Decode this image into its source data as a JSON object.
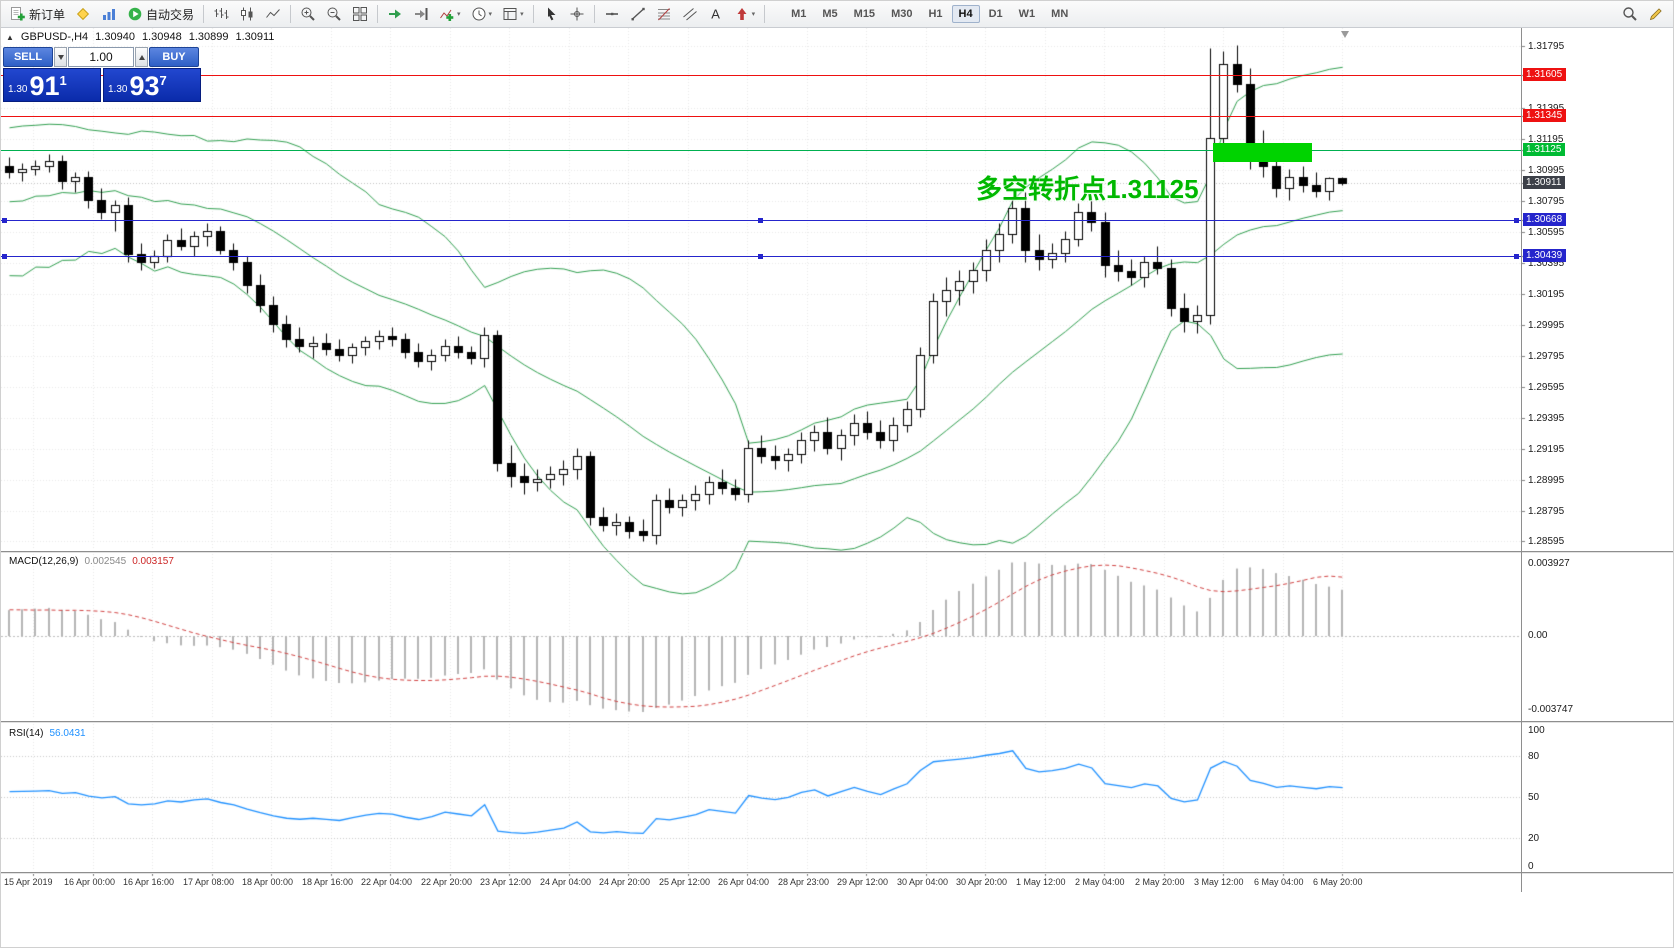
{
  "toolbar": {
    "items": [
      {
        "name": "new-order",
        "icon": "new-order-icon",
        "label": "新订单"
      },
      {
        "name": "metaquotes",
        "icon": "diamond-icon"
      },
      {
        "name": "charts-profile",
        "icon": "profile-icon"
      },
      {
        "name": "autotrading",
        "icon": "autotrading-icon",
        "label": "自动交易"
      },
      {
        "sep": true
      },
      {
        "name": "bar-chart",
        "icon": "bar-chart-icon"
      },
      {
        "name": "candlestick-chart",
        "icon": "candlestick-icon"
      },
      {
        "name": "line-chart",
        "icon": "line-chart-icon"
      },
      {
        "sep": true
      },
      {
        "name": "zoom-in",
        "icon": "zoom-in-icon"
      },
      {
        "name": "zoom-out",
        "icon": "zoom-out-icon"
      },
      {
        "name": "tile-windows",
        "icon": "tile-windows-icon"
      },
      {
        "sep": true
      },
      {
        "name": "auto-scroll",
        "icon": "auto-scroll-icon"
      },
      {
        "name": "chart-shift",
        "icon": "chart-shift-icon"
      },
      {
        "name": "indicators",
        "icon": "indicators-icon",
        "dropdown": true
      },
      {
        "name": "periods",
        "icon": "clock-icon",
        "dropdown": true
      },
      {
        "name": "templates",
        "icon": "template-icon",
        "dropdown": true
      },
      {
        "sep": true
      },
      {
        "name": "cursor",
        "icon": "cursor-icon"
      },
      {
        "name": "crosshair",
        "icon": "crosshair-icon"
      },
      {
        "sep": true
      },
      {
        "name": "horizontal-line",
        "icon": "hline-icon"
      },
      {
        "name": "trendline",
        "icon": "trendline-icon"
      },
      {
        "name": "fibonacci",
        "icon": "fibonacci-icon"
      },
      {
        "name": "equidistant-channel",
        "icon": "channel-icon"
      },
      {
        "name": "text",
        "icon": "text-icon"
      },
      {
        "name": "arrows",
        "icon": "arrow-icon",
        "dropdown": true
      },
      {
        "sep": true
      }
    ],
    "timeframes": [
      "M1",
      "M5",
      "M15",
      "M30",
      "H1",
      "H4",
      "D1",
      "W1",
      "MN"
    ],
    "active_timeframe": "H4",
    "right_items": [
      {
        "name": "search",
        "icon": "search-icon"
      },
      {
        "name": "quick-edit",
        "icon": "pencil-icon"
      }
    ]
  },
  "chart_header": {
    "collapse_icon": "▲",
    "symbol_period": "GBPUSD-,H4",
    "open": "1.30940",
    "high": "1.30948",
    "low": "1.30899",
    "close": "1.30911"
  },
  "one_click": {
    "sell_label": "SELL",
    "buy_label": "BUY",
    "volume": "1.00",
    "sell_price": {
      "small": "1.30",
      "big": "91",
      "sup": "1"
    },
    "buy_price": {
      "small": "1.30",
      "big": "93",
      "sup": "7"
    }
  },
  "annotation": {
    "text": "多空转折点1.31125",
    "color": "#00b800"
  },
  "levels": [
    {
      "price": 1.31605,
      "color": "#ee1111"
    },
    {
      "price": 1.31345,
      "color": "#ee1111"
    },
    {
      "price": 1.31125,
      "color": "#00b050"
    },
    {
      "price": 1.30668,
      "color": "#2525cc",
      "selected": true
    },
    {
      "price": 1.30439,
      "color": "#2525cc",
      "selected": true
    }
  ],
  "highlight_rect": {
    "from_candle": 91.5,
    "to_candle": 99.0,
    "price_top": 1.3117,
    "price_bottom": 1.31045,
    "color": "#00d300"
  },
  "price_axis": {
    "labels": [
      "1.31795",
      "1.31395",
      "1.31195",
      "1.30995",
      "1.30795",
      "1.30595",
      "1.30395",
      "1.30195",
      "1.29995",
      "1.29795",
      "1.29595",
      "1.29395",
      "1.29195",
      "1.28995",
      "1.28795",
      "1.28595"
    ],
    "tags": [
      {
        "text": "1.31605",
        "price": 1.31605,
        "color": "#ee1111"
      },
      {
        "text": "1.31345",
        "price": 1.31345,
        "color": "#ee1111"
      },
      {
        "text": "1.31125",
        "price": 1.31125,
        "color": "#00bb33"
      },
      {
        "text": "1.30911",
        "price": 1.30911,
        "color": "#3c4048",
        "current": true
      },
      {
        "text": "1.30668",
        "price": 1.30668,
        "color": "#2525cc"
      },
      {
        "text": "1.30439",
        "price": 1.30439,
        "color": "#2525cc"
      }
    ]
  },
  "macd_panel": {
    "label": "MACD(12,26,9)",
    "main_value": "0.002545",
    "signal_value": "0.003157",
    "axis_top": "0.003927",
    "axis_zero": "0.00",
    "axis_bottom": "-0.003747",
    "params": {
      "fast": 12,
      "slow": 26,
      "signal": 9
    }
  },
  "rsi_panel": {
    "label": "RSI(14)",
    "value": "56.0431",
    "period": 14,
    "axis_labels": [
      "100",
      "80",
      "50",
      "20",
      "0"
    ],
    "levels": [
      80,
      50,
      20
    ]
  },
  "time_axis": {
    "labels": [
      "15 Apr 2019",
      "16 Apr 00:00",
      "16 Apr 16:00",
      "17 Apr 08:00",
      "18 Apr 00:00",
      "18 Apr 16:00",
      "22 Apr 04:00",
      "22 Apr 20:00",
      "23 Apr 12:00",
      "24 Apr 04:00",
      "24 Apr 20:00",
      "25 Apr 12:00",
      "26 Apr 04:00",
      "28 Apr 23:00",
      "29 Apr 12:00",
      "30 Apr 04:00",
      "30 Apr 20:00",
      "1 May 12:00",
      "2 May 04:00",
      "2 May 20:00",
      "3 May 12:00",
      "6 May 04:00",
      "6 May 20:00"
    ]
  },
  "chart_data": {
    "type": "candlestick",
    "symbol": "GBPUSD-",
    "timeframe": "H4",
    "bollinger": {
      "period": 20,
      "deviation": 2
    },
    "history_closes": [
      1.2975,
      1.2985,
      1.2995,
      1.3005,
      1.3015,
      1.3,
      1.301,
      1.3025,
      1.3035,
      1.302,
      1.303,
      1.3045,
      1.3055,
      1.304,
      1.305,
      1.3065,
      1.3075,
      1.306,
      1.307,
      1.3085,
      1.303,
      1.309,
      1.304,
      1.31,
      1.305,
      1.3105,
      1.3045,
      1.3095,
      1.3055,
      1.311,
      1.306,
      1.31,
      1.304,
      1.3095,
      1.307,
      1.3105,
      1.3055,
      1.309,
      1.3075,
      1.31
    ],
    "candles": [
      [
        1.3102,
        1.3108,
        1.3094,
        1.3098
      ],
      [
        1.3098,
        1.3104,
        1.3092,
        1.31
      ],
      [
        1.31,
        1.3106,
        1.3096,
        1.3102
      ],
      [
        1.3102,
        1.311,
        1.3098,
        1.3105
      ],
      [
        1.3105,
        1.3109,
        1.3087,
        1.3092
      ],
      [
        1.3092,
        1.3098,
        1.3085,
        1.3095
      ],
      [
        1.3095,
        1.3099,
        1.3075,
        1.308
      ],
      [
        1.308,
        1.3088,
        1.3068,
        1.3072
      ],
      [
        1.3072,
        1.308,
        1.306,
        1.3077
      ],
      [
        1.3077,
        1.3082,
        1.304,
        1.3045
      ],
      [
        1.3045,
        1.3052,
        1.3035,
        1.304
      ],
      [
        1.304,
        1.3048,
        1.3036,
        1.3044
      ],
      [
        1.3044,
        1.3058,
        1.304,
        1.3054
      ],
      [
        1.3054,
        1.3062,
        1.3048,
        1.305
      ],
      [
        1.305,
        1.306,
        1.3044,
        1.3057
      ],
      [
        1.3057,
        1.3065,
        1.305,
        1.306
      ],
      [
        1.306,
        1.3063,
        1.3045,
        1.3048
      ],
      [
        1.3048,
        1.3052,
        1.3035,
        1.304
      ],
      [
        1.304,
        1.3044,
        1.302,
        1.3025
      ],
      [
        1.3025,
        1.3032,
        1.3008,
        1.3012
      ],
      [
        1.3012,
        1.3018,
        1.2995,
        1.3
      ],
      [
        1.3,
        1.3006,
        1.2985,
        1.299
      ],
      [
        1.299,
        1.2998,
        1.2982,
        1.2986
      ],
      [
        1.2986,
        1.2992,
        1.2978,
        1.2988
      ],
      [
        1.2988,
        1.2994,
        1.298,
        1.2984
      ],
      [
        1.2984,
        1.299,
        1.2976,
        1.298
      ],
      [
        1.298,
        1.2988,
        1.2975,
        1.2985
      ],
      [
        1.2985,
        1.2992,
        1.298,
        1.2989
      ],
      [
        1.2989,
        1.2996,
        1.2984,
        1.2992
      ],
      [
        1.2992,
        1.2998,
        1.2986,
        1.299
      ],
      [
        1.299,
        1.2994,
        1.2978,
        1.2982
      ],
      [
        1.2982,
        1.2988,
        1.2972,
        1.2976
      ],
      [
        1.2976,
        1.2984,
        1.297,
        1.298
      ],
      [
        1.298,
        1.299,
        1.2976,
        1.2986
      ],
      [
        1.2986,
        1.2992,
        1.2978,
        1.2982
      ],
      [
        1.2982,
        1.2986,
        1.2974,
        1.2978
      ],
      [
        1.2978,
        1.2998,
        1.2972,
        1.2993
      ],
      [
        1.2993,
        1.2996,
        1.2905,
        1.291
      ],
      [
        1.291,
        1.2922,
        1.2895,
        1.2902
      ],
      [
        1.2902,
        1.291,
        1.289,
        1.2898
      ],
      [
        1.2898,
        1.2906,
        1.2892,
        1.29
      ],
      [
        1.29,
        1.2908,
        1.2894,
        1.2903
      ],
      [
        1.2903,
        1.2912,
        1.2896,
        1.2906
      ],
      [
        1.2906,
        1.292,
        1.29,
        1.2915
      ],
      [
        1.2915,
        1.2918,
        1.287,
        1.2875
      ],
      [
        1.2875,
        1.2882,
        1.2866,
        1.287
      ],
      [
        1.287,
        1.2878,
        1.2864,
        1.2872
      ],
      [
        1.2872,
        1.2876,
        1.2862,
        1.2866
      ],
      [
        1.2866,
        1.2874,
        1.286,
        1.2864
      ],
      [
        1.2864,
        1.289,
        1.2858,
        1.2886
      ],
      [
        1.2886,
        1.2894,
        1.2878,
        1.2882
      ],
      [
        1.2882,
        1.289,
        1.2876,
        1.2886
      ],
      [
        1.2886,
        1.2896,
        1.288,
        1.289
      ],
      [
        1.289,
        1.2902,
        1.2884,
        1.2898
      ],
      [
        1.2898,
        1.2906,
        1.289,
        1.2894
      ],
      [
        1.2894,
        1.29,
        1.2886,
        1.289
      ],
      [
        1.289,
        1.2925,
        1.2885,
        1.292
      ],
      [
        1.292,
        1.2928,
        1.291,
        1.2915
      ],
      [
        1.2915,
        1.2922,
        1.2906,
        1.2912
      ],
      [
        1.2912,
        1.292,
        1.2905,
        1.2916
      ],
      [
        1.2916,
        1.293,
        1.291,
        1.2925
      ],
      [
        1.2925,
        1.2935,
        1.2918,
        1.293
      ],
      [
        1.293,
        1.294,
        1.2916,
        1.292
      ],
      [
        1.292,
        1.2932,
        1.2912,
        1.2928
      ],
      [
        1.2928,
        1.2942,
        1.2922,
        1.2936
      ],
      [
        1.2936,
        1.2944,
        1.2926,
        1.293
      ],
      [
        1.293,
        1.2938,
        1.292,
        1.2925
      ],
      [
        1.2925,
        1.294,
        1.2918,
        1.2935
      ],
      [
        1.2935,
        1.295,
        1.293,
        1.2945
      ],
      [
        1.2945,
        1.2985,
        1.294,
        1.298
      ],
      [
        1.298,
        1.302,
        1.2975,
        1.3015
      ],
      [
        1.3015,
        1.303,
        1.3005,
        1.3022
      ],
      [
        1.3022,
        1.3035,
        1.3012,
        1.3028
      ],
      [
        1.3028,
        1.304,
        1.302,
        1.3035
      ],
      [
        1.3035,
        1.3055,
        1.3028,
        1.3048
      ],
      [
        1.3048,
        1.3065,
        1.304,
        1.3058
      ],
      [
        1.3058,
        1.3082,
        1.3052,
        1.3075
      ],
      [
        1.3075,
        1.3085,
        1.304,
        1.3048
      ],
      [
        1.3048,
        1.3058,
        1.3035,
        1.3042
      ],
      [
        1.3042,
        1.3052,
        1.3036,
        1.3046
      ],
      [
        1.3046,
        1.306,
        1.304,
        1.3055
      ],
      [
        1.3055,
        1.3078,
        1.305,
        1.3072
      ],
      [
        1.3072,
        1.308,
        1.306,
        1.3066
      ],
      [
        1.3066,
        1.3072,
        1.303,
        1.3038
      ],
      [
        1.3038,
        1.3048,
        1.3028,
        1.3034
      ],
      [
        1.3034,
        1.3042,
        1.3025,
        1.303
      ],
      [
        1.303,
        1.3044,
        1.3024,
        1.304
      ],
      [
        1.304,
        1.305,
        1.3032,
        1.3036
      ],
      [
        1.3036,
        1.3042,
        1.3005,
        1.301
      ],
      [
        1.301,
        1.302,
        1.2995,
        1.3002
      ],
      [
        1.3002,
        1.3012,
        1.2994,
        1.3006
      ],
      [
        1.3006,
        1.3178,
        1.3,
        1.312
      ],
      [
        1.312,
        1.3176,
        1.311,
        1.3168
      ],
      [
        1.3168,
        1.318,
        1.315,
        1.3155
      ],
      [
        1.3155,
        1.3165,
        1.31,
        1.3112
      ],
      [
        1.3112,
        1.3125,
        1.3095,
        1.3102
      ],
      [
        1.3102,
        1.311,
        1.3082,
        1.3088
      ],
      [
        1.3088,
        1.31,
        1.308,
        1.3095
      ],
      [
        1.3095,
        1.3102,
        1.3085,
        1.309
      ],
      [
        1.309,
        1.3098,
        1.3082,
        1.3086
      ],
      [
        1.3086,
        1.3095,
        1.308,
        1.3094
      ],
      [
        1.3094,
        1.30948,
        1.30899,
        1.30911
      ]
    ]
  }
}
